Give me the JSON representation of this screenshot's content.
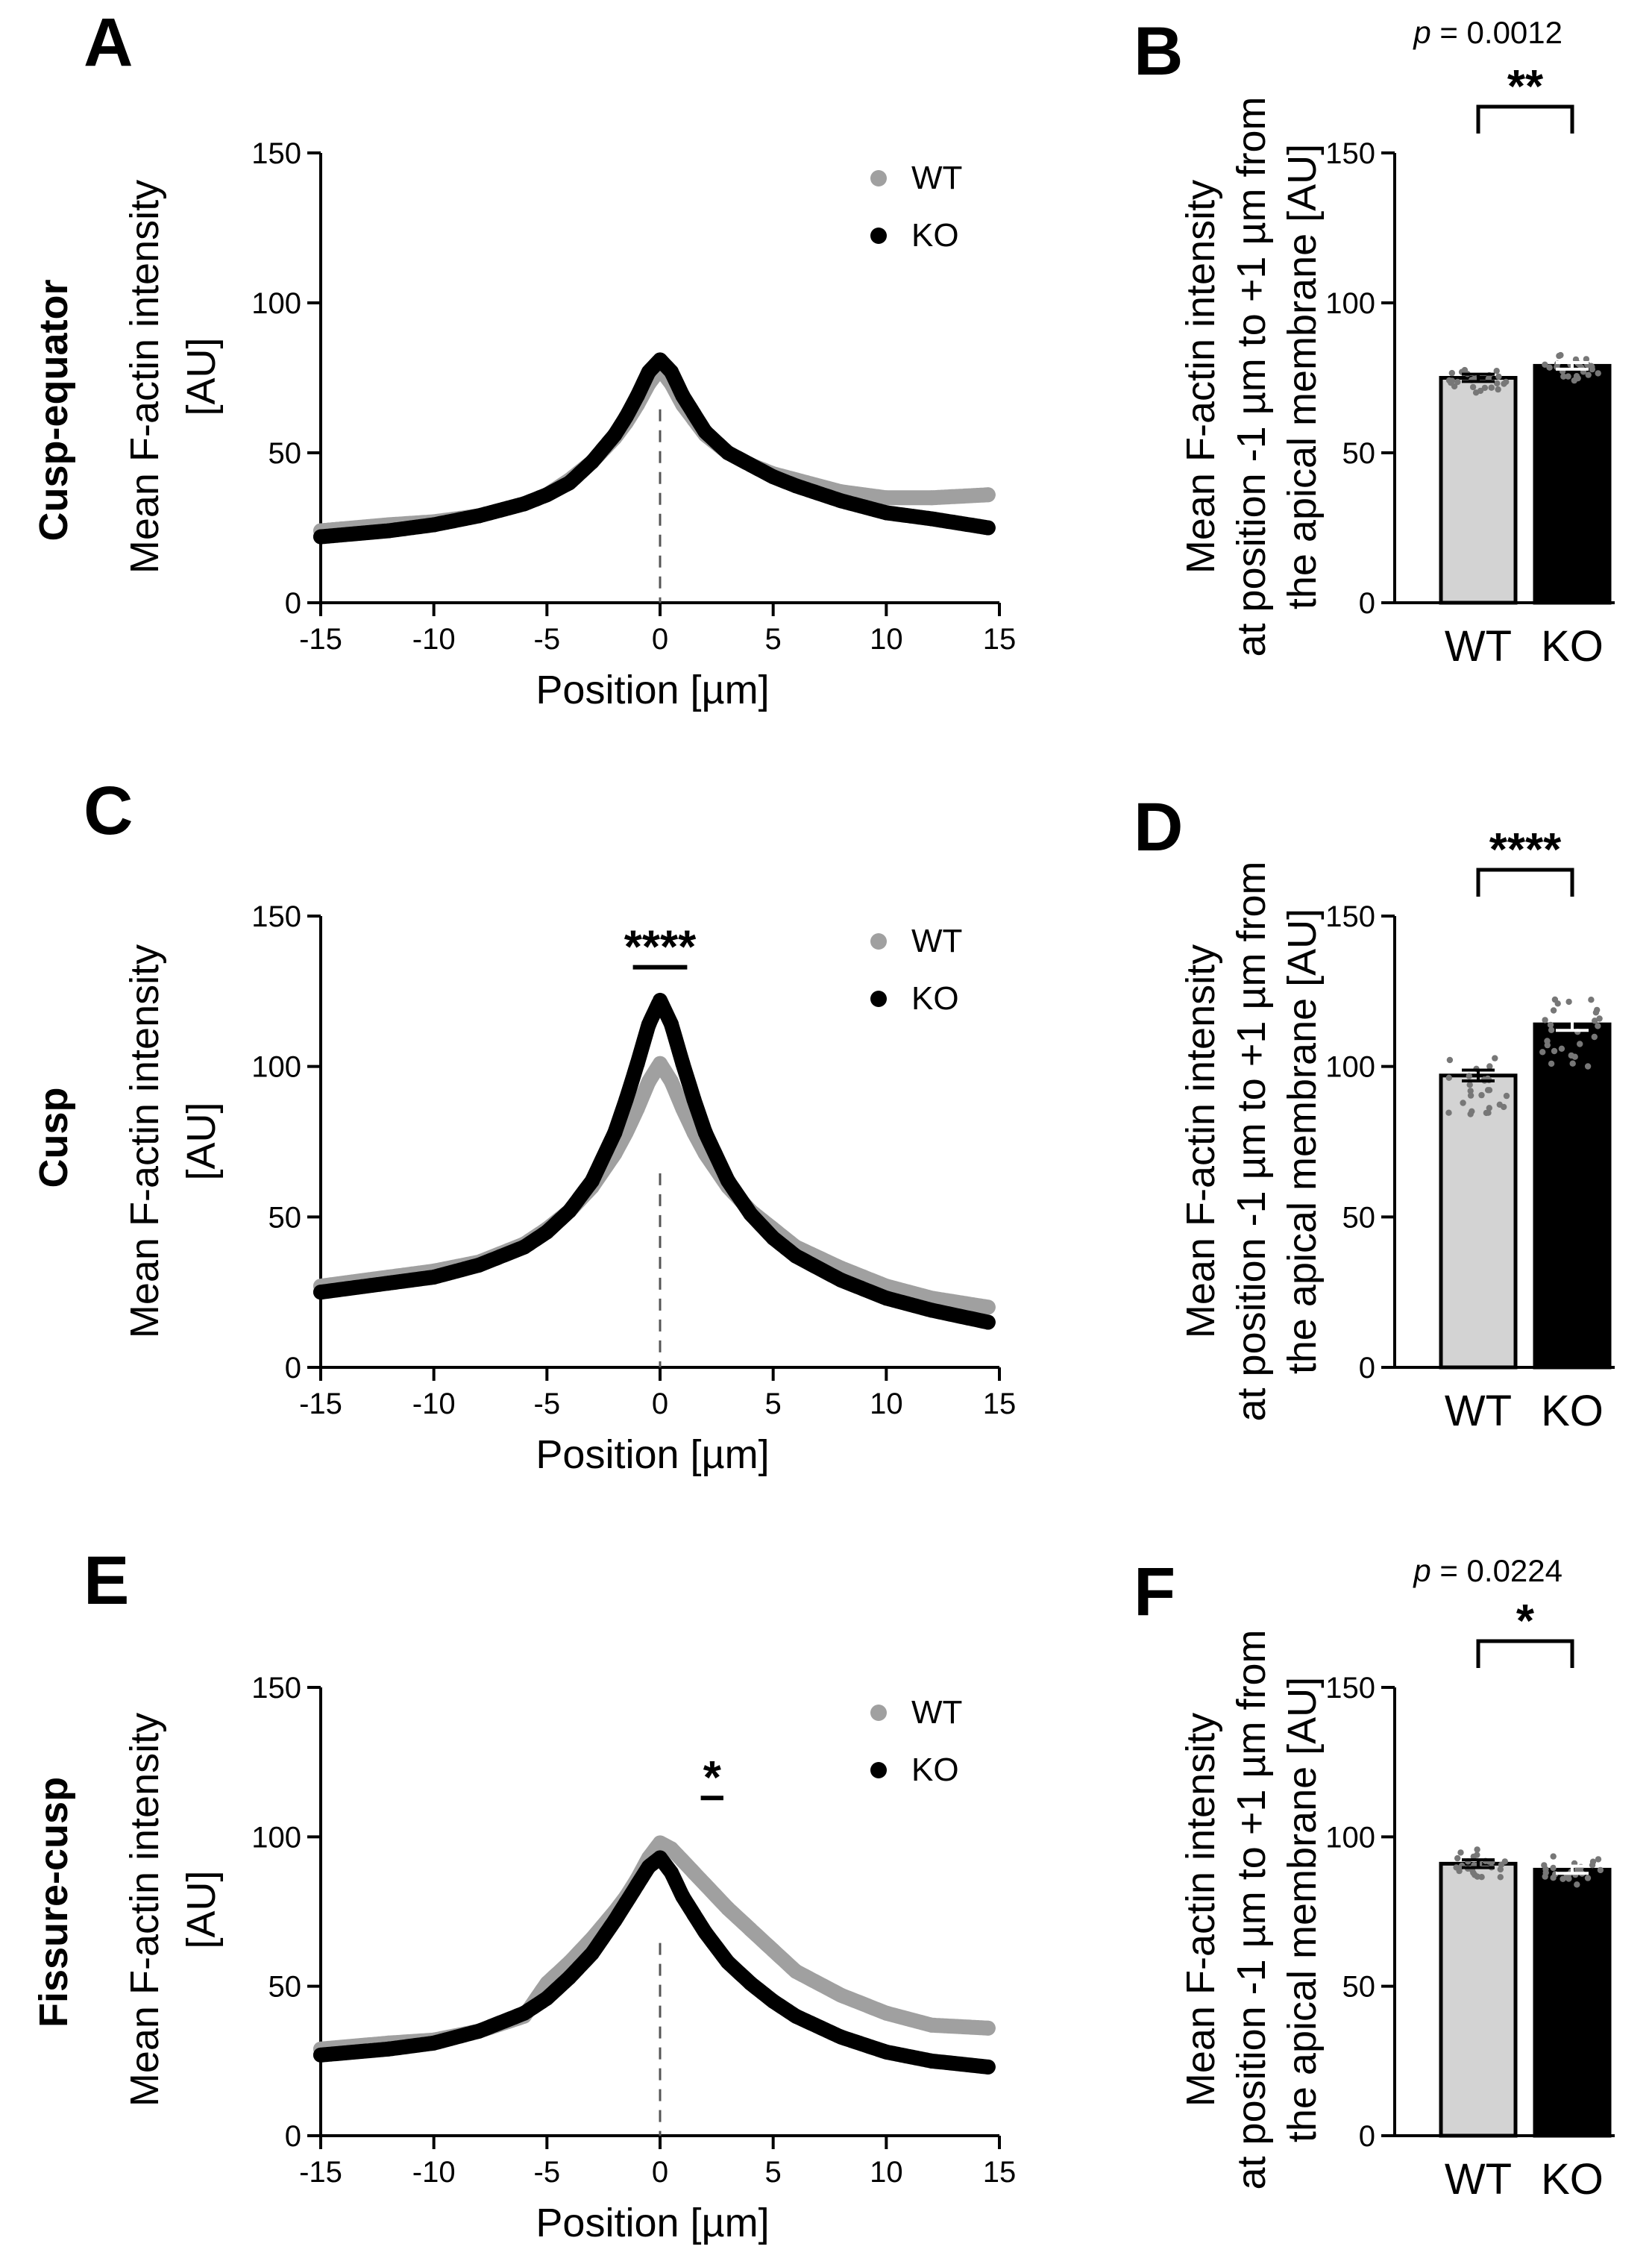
{
  "chart_data": [
    {
      "panel": "A",
      "type": "scatter",
      "row_label": "Cusp-equator",
      "xlabel": "Position [µm]",
      "ylabel_lines": [
        "Mean F-actin intensity",
        "[AU]"
      ],
      "xlim": [
        -15,
        15
      ],
      "ylim": [
        0,
        150
      ],
      "xticks": [
        -15,
        -10,
        -5,
        0,
        5,
        10,
        15
      ],
      "yticks": [
        0,
        50,
        100,
        150
      ],
      "series": [
        {
          "name": "WT",
          "color": "#a0a0a0",
          "x": [
            -15,
            -12,
            -10,
            -8,
            -6,
            -5,
            -4,
            -3,
            -2,
            -1.5,
            -1,
            -0.5,
            0,
            0.5,
            1,
            1.5,
            2,
            3,
            4,
            5,
            6,
            8,
            10,
            12,
            14.5
          ],
          "y": [
            24,
            26,
            27,
            29,
            33,
            36,
            41,
            47,
            55,
            60,
            66,
            73,
            78,
            73,
            66,
            61,
            56,
            50,
            46,
            43,
            41,
            37,
            35,
            35,
            36
          ]
        },
        {
          "name": "KO",
          "color": "#000000",
          "x": [
            -15,
            -12,
            -10,
            -8,
            -6,
            -5,
            -4,
            -3,
            -2,
            -1.5,
            -1,
            -0.5,
            0,
            0.5,
            1,
            1.5,
            2,
            3,
            4,
            5,
            6,
            8,
            10,
            12,
            14.5
          ],
          "y": [
            22,
            24,
            26,
            29,
            33,
            36,
            40,
            47,
            56,
            62,
            69,
            77,
            81,
            77,
            69,
            63,
            57,
            50,
            46,
            42,
            39,
            34,
            30,
            28,
            25
          ]
        }
      ],
      "annotations": []
    },
    {
      "panel": "B",
      "type": "bar",
      "ylabel_lines": [
        "Mean F-actin intensity",
        "at position -1 µm to +1 µm from",
        "the apical membrane [AU]"
      ],
      "categories": [
        "WT",
        "KO"
      ],
      "values": [
        75,
        79
      ],
      "errors": [
        1.2,
        1.1
      ],
      "colors": [
        "#d3d3d3",
        "#000000"
      ],
      "ylim": [
        0,
        150
      ],
      "yticks": [
        0,
        50,
        100,
        150
      ],
      "points_range": [
        [
          70,
          79
        ],
        [
          74,
          83
        ]
      ],
      "significance": "**",
      "p_prefix": "p",
      "p_value": " = 0.0012"
    },
    {
      "panel": "C",
      "type": "scatter",
      "row_label": "Cusp",
      "xlabel": "Position [µm]",
      "ylabel_lines": [
        "Mean F-actin intensity",
        "[AU]"
      ],
      "xlim": [
        -15,
        15
      ],
      "ylim": [
        0,
        150
      ],
      "xticks": [
        -15,
        -10,
        -5,
        0,
        5,
        10,
        15
      ],
      "yticks": [
        0,
        50,
        100,
        150
      ],
      "series": [
        {
          "name": "WT",
          "color": "#a0a0a0",
          "x": [
            -15,
            -12,
            -10,
            -8,
            -6,
            -5,
            -4,
            -3,
            -2,
            -1.5,
            -1,
            -0.5,
            0,
            0.5,
            1,
            1.5,
            2,
            3,
            4,
            5,
            6,
            8,
            10,
            12,
            14.5
          ],
          "y": [
            27,
            30,
            32,
            35,
            41,
            46,
            52,
            60,
            71,
            78,
            86,
            95,
            101,
            95,
            86,
            78,
            71,
            60,
            52,
            46,
            40,
            33,
            27,
            23,
            20
          ]
        },
        {
          "name": "KO",
          "color": "#000000",
          "x": [
            -15,
            -12,
            -10,
            -8,
            -6,
            -5,
            -4,
            -3,
            -2,
            -1.5,
            -1,
            -0.5,
            0,
            0.5,
            1,
            1.5,
            2,
            3,
            4,
            5,
            6,
            8,
            10,
            12,
            14.5
          ],
          "y": [
            25,
            28,
            30,
            34,
            40,
            45,
            52,
            62,
            78,
            89,
            101,
            114,
            122,
            114,
            101,
            89,
            78,
            62,
            51,
            43,
            37,
            29,
            23,
            19,
            15
          ]
        }
      ],
      "annotations": [
        {
          "text": "****",
          "x_from": -1.2,
          "x_to": 1.2,
          "y": 133
        }
      ]
    },
    {
      "panel": "D",
      "type": "bar",
      "ylabel_lines": [
        "Mean F-actin intensity",
        "at position -1 µm to +1 µm from",
        "the apical membrane [AU]"
      ],
      "categories": [
        "WT",
        "KO"
      ],
      "values": [
        97,
        114
      ],
      "errors": [
        1.8,
        2.0
      ],
      "colors": [
        "#d3d3d3",
        "#000000"
      ],
      "ylim": [
        0,
        150
      ],
      "yticks": [
        0,
        50,
        100,
        150
      ],
      "points_range": [
        [
          84,
          104
        ],
        [
          100,
          123
        ]
      ],
      "significance": "****",
      "p_prefix": "",
      "p_value": ""
    },
    {
      "panel": "E",
      "type": "scatter",
      "row_label": "Fissure-cusp",
      "xlabel": "Position [µm]",
      "ylabel_lines": [
        "Mean F-actin intensity",
        "[AU]"
      ],
      "xlim": [
        -15,
        15
      ],
      "ylim": [
        0,
        150
      ],
      "xticks": [
        -15,
        -10,
        -5,
        0,
        5,
        10,
        15
      ],
      "yticks": [
        0,
        50,
        100,
        150
      ],
      "series": [
        {
          "name": "WT",
          "color": "#a0a0a0",
          "x": [
            -15,
            -12,
            -10,
            -8,
            -6,
            -5,
            -4,
            -3,
            -2,
            -1.5,
            -1,
            -0.5,
            0,
            0.5,
            1,
            1.5,
            2,
            3,
            4,
            5,
            6,
            8,
            10,
            12,
            14.5
          ],
          "y": [
            29,
            31,
            32,
            35,
            40,
            51,
            58,
            66,
            75,
            80,
            86,
            93,
            98,
            96,
            92,
            88,
            84,
            76,
            69,
            62,
            55,
            47,
            41,
            37,
            36
          ]
        },
        {
          "name": "KO",
          "color": "#000000",
          "x": [
            -15,
            -12,
            -10,
            -8,
            -6,
            -5,
            -4,
            -3,
            -2,
            -1.5,
            -1,
            -0.5,
            0,
            0.5,
            1,
            1.5,
            2,
            3,
            4,
            5,
            6,
            8,
            10,
            12,
            14.5
          ],
          "y": [
            27,
            29,
            31,
            35,
            41,
            46,
            53,
            61,
            72,
            78,
            84,
            90,
            93,
            88,
            80,
            74,
            68,
            58,
            51,
            45,
            40,
            33,
            28,
            25,
            23
          ]
        }
      ],
      "annotations": [
        {
          "text": "*",
          "x_from": 1.8,
          "x_to": 2.8,
          "y": 113
        }
      ]
    },
    {
      "panel": "F",
      "type": "bar",
      "ylabel_lines": [
        "Mean F-actin intensity",
        "at position -1 µm to +1 µm from",
        "the apical membrane [AU]"
      ],
      "categories": [
        "WT",
        "KO"
      ],
      "values": [
        91,
        89
      ],
      "errors": [
        1.3,
        1.2
      ],
      "colors": [
        "#d3d3d3",
        "#000000"
      ],
      "ylim": [
        0,
        150
      ],
      "yticks": [
        0,
        50,
        100,
        150
      ],
      "points_range": [
        [
          86,
          96
        ],
        [
          84,
          94
        ]
      ],
      "significance": "*",
      "p_prefix": "p",
      "p_value": " = 0.0224"
    }
  ]
}
